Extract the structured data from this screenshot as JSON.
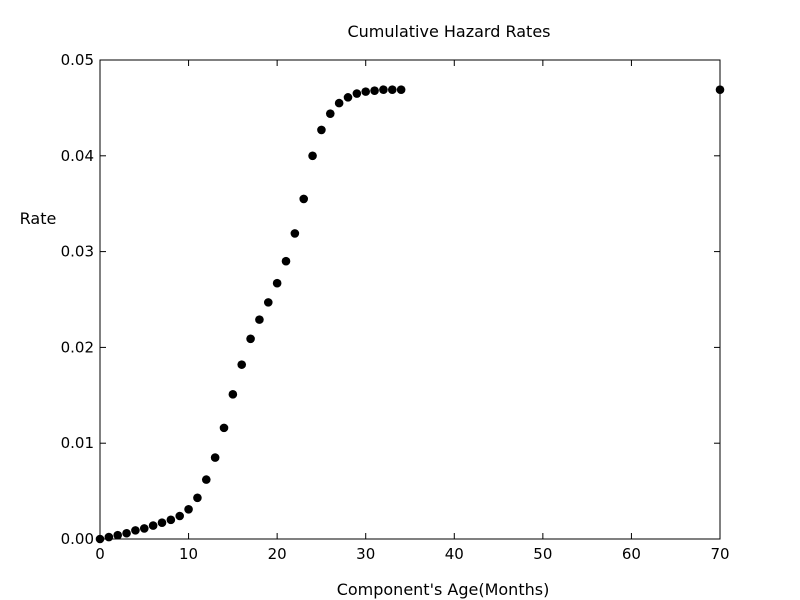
{
  "chart_data": {
    "type": "scatter",
    "title": "Cumulative Hazard Rates",
    "xlabel": "Component's Age(Months)",
    "ylabel": "Rate",
    "xlim": [
      0,
      70
    ],
    "ylim": [
      0,
      0.05
    ],
    "xticks": [
      0,
      10,
      20,
      30,
      40,
      50,
      60,
      70
    ],
    "xtick_labels": [
      "0",
      "10",
      "20",
      "30",
      "40",
      "50",
      "60",
      "70"
    ],
    "yticks": [
      0,
      0.01,
      0.02,
      0.03,
      0.04,
      0.05
    ],
    "ytick_labels": [
      "0.00",
      "0.01",
      "0.02",
      "0.03",
      "0.04",
      "0.05"
    ],
    "grid": false,
    "marker_color": "#000000",
    "series": [
      {
        "x": [
          0,
          1,
          2,
          3,
          4,
          5,
          6,
          7,
          8,
          9,
          10,
          11,
          12,
          13,
          14,
          15,
          16,
          17,
          18,
          19,
          20,
          21,
          22,
          23,
          24,
          25,
          26,
          27,
          28,
          29,
          30,
          31,
          32,
          33,
          34,
          70
        ],
        "y": [
          0.0,
          0.0002,
          0.0004,
          0.0006,
          0.0009,
          0.0011,
          0.0014,
          0.0017,
          0.002,
          0.0024,
          0.0031,
          0.0043,
          0.0062,
          0.0085,
          0.0116,
          0.0151,
          0.0182,
          0.0209,
          0.0229,
          0.0247,
          0.0267,
          0.029,
          0.0319,
          0.0355,
          0.04,
          0.0427,
          0.0444,
          0.0455,
          0.0461,
          0.0465,
          0.0467,
          0.0468,
          0.0469,
          0.0469,
          0.0469,
          0.0469
        ]
      }
    ]
  }
}
